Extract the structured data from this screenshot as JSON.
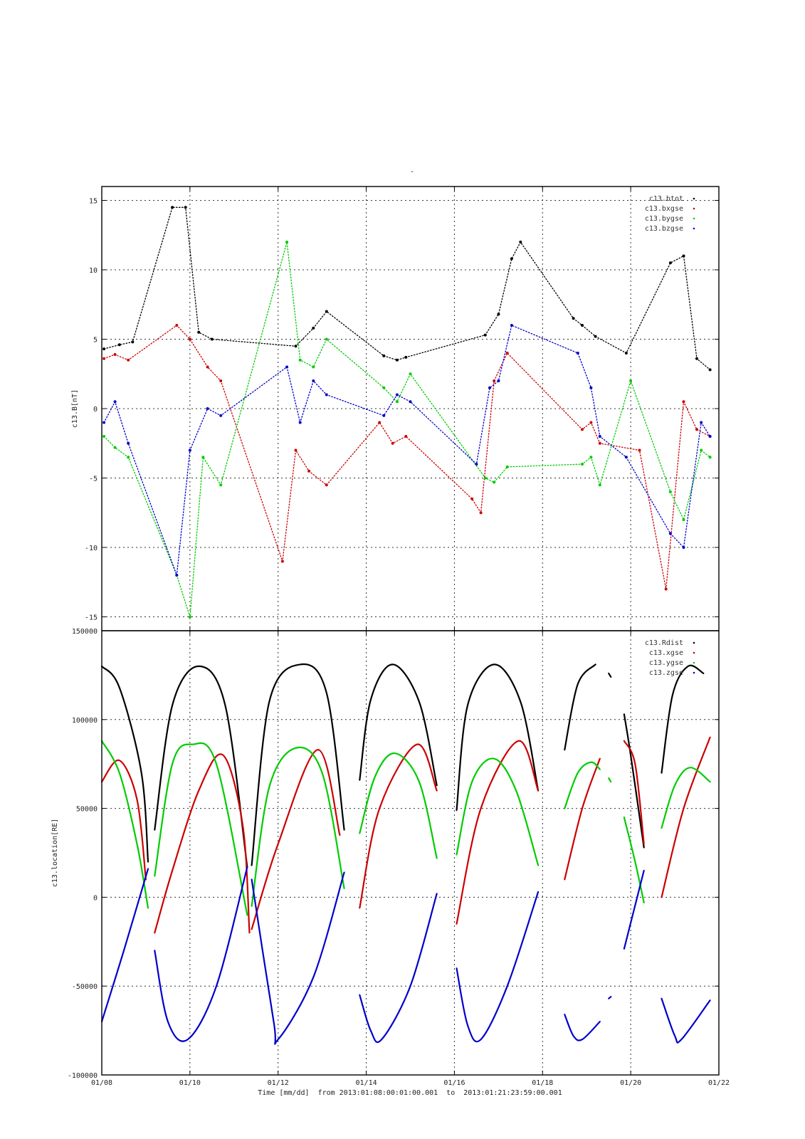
{
  "page": {
    "top_mark": "-",
    "footer": "Time [mm/dd]  from 2013:01:08:00:01:00.001  to  2013:01:21:23:59:00.001"
  },
  "chart_data": [
    {
      "type": "scatter",
      "ylabel": "c13.B[nT]",
      "ylim": [
        -16,
        16
      ],
      "yticks": [
        15,
        10,
        5,
        0,
        -5,
        -10,
        -15
      ],
      "x_unit": "day of January 2013",
      "xlim": [
        8,
        22
      ],
      "xticks": [
        8,
        10,
        12,
        14,
        16,
        18,
        20,
        22
      ],
      "xtick_labels": [
        "01/08",
        "01/10",
        "01/12",
        "01/14",
        "01/16",
        "01/18",
        "01/20",
        "01/22"
      ],
      "grid": true,
      "legend_position": "top-right",
      "colors": {
        "c13.btot": "#000000",
        "c13.bxgse": "#cc0000",
        "c13.bygse": "#00cc00",
        "c13.bzgse": "#0000cc"
      },
      "series": [
        {
          "name": "c13.btot",
          "x": [
            8.05,
            8.4,
            8.7,
            9.6,
            9.9,
            10.2,
            10.5,
            12.4,
            12.8,
            13.1,
            14.4,
            14.7,
            14.9,
            16.7,
            17.0,
            17.3,
            17.5,
            18.7,
            18.9,
            19.2,
            19.9,
            20.9,
            21.2,
            21.5,
            21.8
          ],
          "values": [
            4.3,
            4.6,
            4.8,
            14.5,
            14.5,
            5.5,
            5.0,
            4.5,
            5.8,
            7.0,
            3.8,
            3.5,
            3.7,
            5.3,
            6.8,
            10.8,
            12.0,
            6.5,
            6.0,
            5.2,
            4.0,
            10.5,
            11.0,
            3.6,
            2.8
          ]
        },
        {
          "name": "c13.bxgse",
          "x": [
            8.05,
            8.3,
            8.6,
            9.7,
            10.0,
            10.4,
            10.7,
            12.1,
            12.4,
            12.7,
            13.1,
            14.3,
            14.6,
            14.9,
            16.4,
            16.6,
            16.9,
            17.2,
            18.9,
            19.1,
            19.3,
            20.2,
            20.8,
            21.2,
            21.5,
            21.8
          ],
          "values": [
            3.6,
            3.9,
            3.5,
            6.0,
            5.0,
            3.0,
            2.0,
            -11.0,
            -3.0,
            -4.5,
            -5.5,
            -1.0,
            -2.5,
            -2.0,
            -6.5,
            -7.5,
            2.0,
            4.0,
            -1.5,
            -1.0,
            -2.5,
            -3.0,
            -13.0,
            0.5,
            -1.5,
            -2.0
          ]
        },
        {
          "name": "c13.bygse",
          "x": [
            8.05,
            8.3,
            8.6,
            9.7,
            10.0,
            10.3,
            10.7,
            12.2,
            12.5,
            12.8,
            13.1,
            14.4,
            14.7,
            15.0,
            16.7,
            16.9,
            17.2,
            18.9,
            19.1,
            19.3,
            20.0,
            20.9,
            21.2,
            21.6,
            21.8
          ],
          "values": [
            -2.0,
            -2.8,
            -3.5,
            -12.0,
            -15.0,
            -3.5,
            -5.5,
            12.0,
            3.5,
            3.0,
            5.0,
            1.5,
            0.5,
            2.5,
            -5.0,
            -5.3,
            -4.2,
            -4.0,
            -3.5,
            -5.5,
            2.0,
            -6.0,
            -8.0,
            -3.0,
            -3.5
          ]
        },
        {
          "name": "c13.bzgse",
          "x": [
            8.05,
            8.3,
            8.6,
            9.7,
            10.0,
            10.4,
            10.7,
            12.2,
            12.5,
            12.8,
            13.1,
            14.4,
            14.7,
            15.0,
            16.5,
            16.8,
            17.0,
            17.3,
            18.8,
            19.1,
            19.3,
            19.9,
            20.9,
            21.2,
            21.6,
            21.8
          ],
          "values": [
            -1.0,
            0.5,
            -2.5,
            -12.0,
            -3.0,
            0.0,
            -0.5,
            3.0,
            -1.0,
            2.0,
            1.0,
            -0.5,
            1.0,
            0.5,
            -4.0,
            1.5,
            2.0,
            6.0,
            4.0,
            1.5,
            -2.0,
            -3.5,
            -9.0,
            -10.0,
            -1.0,
            -2.0
          ]
        }
      ]
    },
    {
      "type": "line",
      "ylabel": "c13.location[RE]",
      "ylim": [
        -100000,
        150000
      ],
      "yticks": [
        150000,
        100000,
        50000,
        0,
        -50000,
        -100000
      ],
      "x_unit": "day of January 2013",
      "xlim": [
        8,
        22
      ],
      "xticks": [
        8,
        10,
        12,
        14,
        16,
        18,
        20,
        22
      ],
      "xtick_labels": [
        "01/08",
        "01/10",
        "01/12",
        "01/14",
        "01/16",
        "01/18",
        "01/20",
        "01/22"
      ],
      "grid": true,
      "legend_position": "top-right",
      "colors": {
        "c13.Rdist": "#000000",
        "c13.xgse": "#cc0000",
        "c13.ygse": "#00cc00",
        "c13.zgse": "#0000cc"
      },
      "series": [
        {
          "name": "c13.Rdist",
          "segments": [
            {
              "x": [
                8.0,
                8.4,
                8.9,
                9.05
              ],
              "values": [
                130000,
                118000,
                70000,
                20000
              ]
            },
            {
              "x": [
                9.2,
                9.6,
                10.2,
                10.8,
                11.3
              ],
              "values": [
                38000,
                108000,
                130000,
                108000,
                17000
              ]
            },
            {
              "x": [
                11.4,
                11.8,
                12.5,
                13.1,
                13.5
              ],
              "values": [
                18000,
                110000,
                131000,
                115000,
                38000
              ]
            },
            {
              "x": [
                13.85,
                14.1,
                14.6,
                15.2,
                15.6
              ],
              "values": [
                66000,
                111000,
                131000,
                110000,
                63000
              ]
            },
            {
              "x": [
                16.05,
                16.3,
                16.9,
                17.5,
                17.9
              ],
              "values": [
                49000,
                108000,
                131000,
                110000,
                60000
              ]
            },
            {
              "x": [
                18.5,
                18.8,
                19.2
              ],
              "values": [
                83000,
                120000,
                131000
              ]
            },
            {
              "x": [
                19.5,
                19.55
              ],
              "values": [
                126000,
                124000
              ]
            },
            {
              "x": [
                19.85,
                20.0,
                20.3
              ],
              "values": [
                103000,
                80000,
                28000
              ]
            },
            {
              "x": [
                20.7,
                20.95,
                21.3,
                21.65
              ],
              "values": [
                70000,
                114000,
                130000,
                126000
              ]
            }
          ]
        },
        {
          "name": "c13.xgse",
          "segments": [
            {
              "x": [
                8.0,
                8.4,
                8.8,
                9.0
              ],
              "values": [
                65000,
                77000,
                55000,
                10000
              ]
            },
            {
              "x": [
                9.2,
                9.6,
                10.2,
                10.75,
                11.2,
                11.35
              ],
              "values": [
                -20000,
                15000,
                60000,
                80000,
                40000,
                -20000
              ]
            },
            {
              "x": [
                11.4,
                12.0,
                12.9,
                13.4
              ],
              "values": [
                -18000,
                30000,
                83000,
                35000
              ]
            },
            {
              "x": [
                13.85,
                14.3,
                15.15,
                15.6
              ],
              "values": [
                -6000,
                50000,
                86000,
                60000
              ]
            },
            {
              "x": [
                16.05,
                16.6,
                17.45,
                17.9
              ],
              "values": [
                -15000,
                50000,
                88000,
                60000
              ]
            },
            {
              "x": [
                18.5,
                18.9,
                19.3
              ],
              "values": [
                10000,
                50000,
                78000
              ]
            },
            {
              "x": [
                19.85,
                20.1,
                20.3
              ],
              "values": [
                88000,
                75000,
                30000
              ]
            },
            {
              "x": [
                20.7,
                21.2,
                21.8
              ],
              "values": [
                0,
                50000,
                90000
              ]
            }
          ]
        },
        {
          "name": "c13.ygse",
          "segments": [
            {
              "x": [
                8.0,
                8.4,
                8.8,
                9.05
              ],
              "values": [
                88000,
                70000,
                30000,
                -6000
              ]
            },
            {
              "x": [
                9.2,
                9.6,
                10.05,
                10.6,
                11.3
              ],
              "values": [
                12000,
                75000,
                86000,
                75000,
                -10000
              ]
            },
            {
              "x": [
                11.4,
                11.8,
                12.4,
                13.0,
                13.5
              ],
              "values": [
                -5000,
                62000,
                84000,
                70000,
                5000
              ]
            },
            {
              "x": [
                13.85,
                14.2,
                14.65,
                15.2,
                15.6
              ],
              "values": [
                36000,
                68000,
                81000,
                65000,
                22000
              ]
            },
            {
              "x": [
                16.05,
                16.4,
                16.9,
                17.4,
                17.9
              ],
              "values": [
                24000,
                65000,
                78000,
                60000,
                18000
              ]
            },
            {
              "x": [
                18.5,
                18.8,
                19.1,
                19.3
              ],
              "values": [
                50000,
                70000,
                76000,
                72000
              ]
            },
            {
              "x": [
                19.5,
                19.55
              ],
              "values": [
                67000,
                65000
              ]
            },
            {
              "x": [
                19.85,
                20.1,
                20.3
              ],
              "values": [
                45000,
                20000,
                -3000
              ]
            },
            {
              "x": [
                20.7,
                21.0,
                21.35,
                21.8
              ],
              "values": [
                39000,
                63000,
                73000,
                65000
              ]
            }
          ]
        },
        {
          "name": "c13.zgse",
          "segments": [
            {
              "x": [
                8.0,
                8.5,
                9.05
              ],
              "values": [
                -70000,
                -30000,
                16000
              ]
            },
            {
              "x": [
                9.2,
                9.5,
                9.95,
                10.6,
                11.3
              ],
              "values": [
                -30000,
                -70000,
                -80000,
                -50000,
                17000
              ]
            },
            {
              "x": [
                11.4,
                11.9,
                12.0,
                12.8,
                13.5
              ],
              "values": [
                10000,
                -70000,
                -80000,
                -45000,
                14000
              ]
            },
            {
              "x": [
                13.85,
                14.1,
                14.35,
                15.0,
                15.6
              ],
              "values": [
                -55000,
                -75000,
                -80000,
                -50000,
                2000
              ]
            },
            {
              "x": [
                16.05,
                16.3,
                16.6,
                17.2,
                17.9
              ],
              "values": [
                -40000,
                -72000,
                -80000,
                -50000,
                3000
              ]
            },
            {
              "x": [
                18.5,
                18.7,
                18.9,
                19.3
              ],
              "values": [
                -66000,
                -78000,
                -80000,
                -70000
              ]
            },
            {
              "x": [
                19.5,
                19.55
              ],
              "values": [
                -57000,
                -56000
              ]
            },
            {
              "x": [
                19.85,
                20.3
              ],
              "values": [
                -29000,
                15000
              ]
            },
            {
              "x": [
                20.7,
                21.0,
                21.15,
                21.8
              ],
              "values": [
                -57000,
                -78000,
                -80000,
                -58000
              ]
            }
          ]
        }
      ]
    }
  ]
}
